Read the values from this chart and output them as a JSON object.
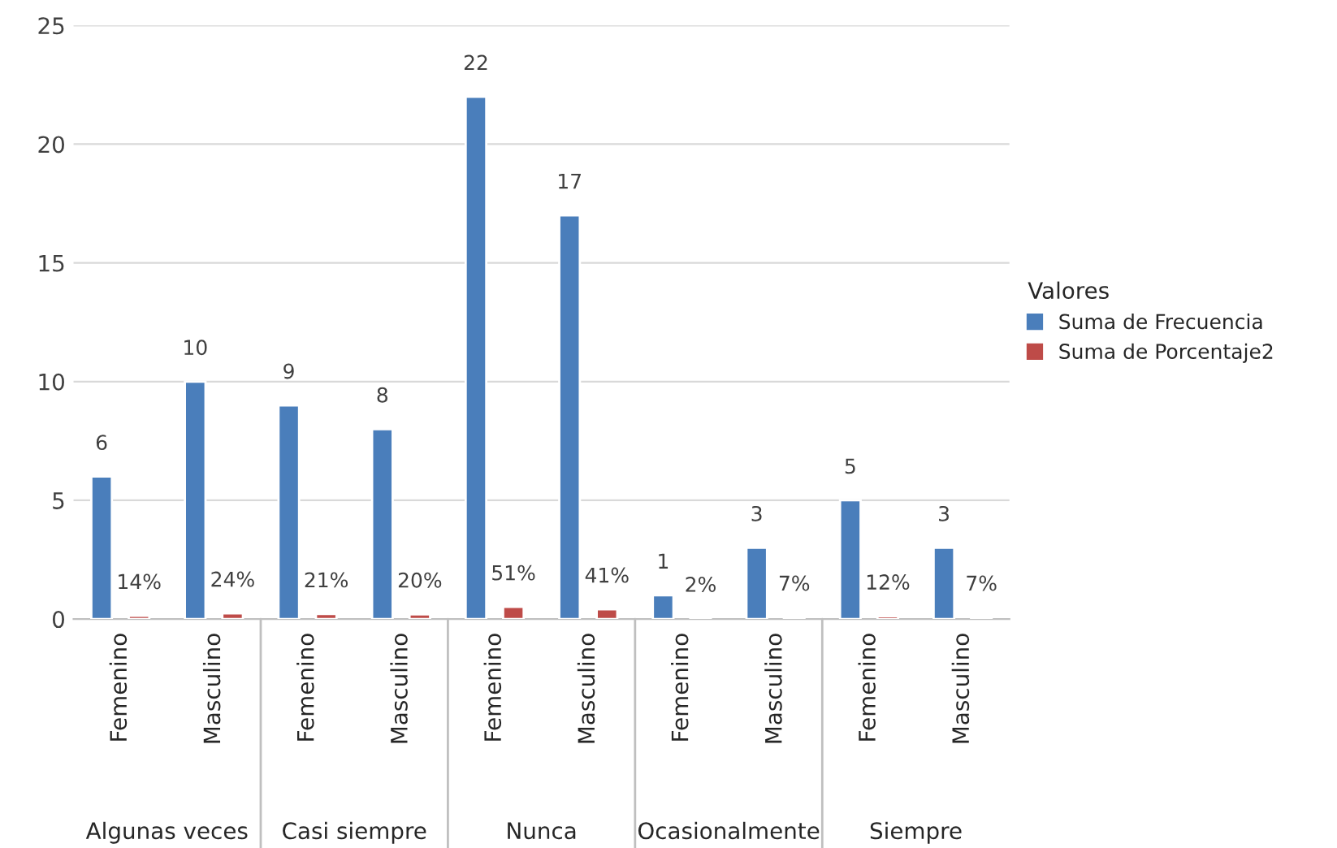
{
  "chart_data": {
    "type": "bar",
    "categories": [
      "Femenino",
      "Masculino",
      "Femenino",
      "Masculino",
      "Femenino",
      "Masculino",
      "Femenino",
      "Masculino",
      "Femenino",
      "Masculino"
    ],
    "annotations": [
      "Algunas veces",
      "Casi siempre",
      "Nunca",
      "Ocasionalmente",
      "Siempre"
    ],
    "series": [
      {
        "name": "Suma de Frecuencia",
        "color": "#4a7ebb",
        "values": [
          6,
          10,
          9,
          8,
          22,
          17,
          1,
          3,
          5,
          3
        ],
        "value_labels": [
          "6",
          "10",
          "9",
          "8",
          "22",
          "17",
          "1",
          "3",
          "5",
          "3"
        ]
      },
      {
        "name": "Suma de Porcentaje2",
        "color": "#be4b48",
        "values": [
          0.14,
          0.24,
          0.21,
          0.2,
          0.51,
          0.41,
          0.02,
          0.07,
          0.12,
          0.07
        ],
        "value_labels": [
          "14%",
          "24%",
          "21%",
          "20%",
          "51%",
          "41%",
          "2%",
          "7%",
          "12%",
          "7%"
        ]
      }
    ],
    "ylim": [
      0,
      25
    ],
    "yticks": [
      0,
      5,
      10,
      15,
      20,
      25
    ],
    "grid": "y",
    "legend": "right",
    "legend_title": "Valores"
  }
}
